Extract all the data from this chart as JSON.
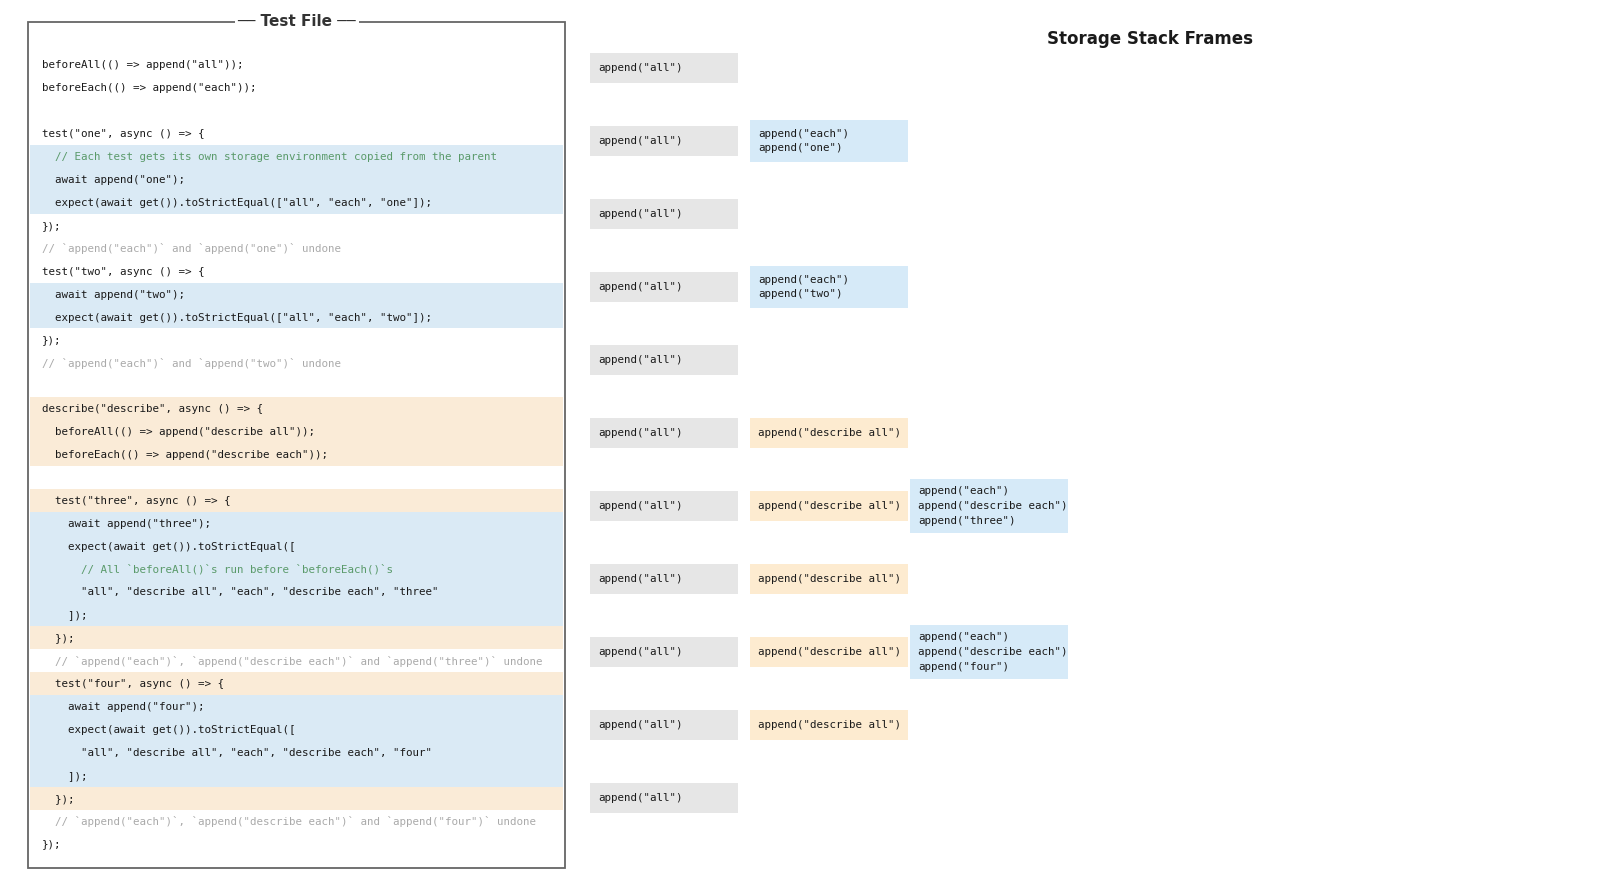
{
  "title": "Storage Stack Frames",
  "code_title": "Test File",
  "background": "#ffffff",
  "code_lines": [
    {
      "text": "beforeAll(() => append(\"all\"));",
      "style": "normal",
      "highlight": null
    },
    {
      "text": "beforeEach(() => append(\"each\"));",
      "style": "normal",
      "highlight": null
    },
    {
      "text": "",
      "style": "normal",
      "highlight": null
    },
    {
      "text": "test(\"one\", async () => {",
      "style": "normal",
      "highlight": null
    },
    {
      "text": "  // Each test gets its own storage environment copied from the parent",
      "style": "comment",
      "highlight": "blue"
    },
    {
      "text": "  await append(\"one\");",
      "style": "normal",
      "highlight": "blue"
    },
    {
      "text": "  expect(await get()).toStrictEqual([\"all\", \"each\", \"one\"]);",
      "style": "normal",
      "highlight": "blue"
    },
    {
      "text": "});",
      "style": "normal",
      "highlight": null
    },
    {
      "text": "// `append(\"each\")` and `append(\"one\")` undone",
      "style": "comment_gray",
      "highlight": null
    },
    {
      "text": "test(\"two\", async () => {",
      "style": "normal",
      "highlight": null
    },
    {
      "text": "  await append(\"two\");",
      "style": "normal",
      "highlight": "blue"
    },
    {
      "text": "  expect(await get()).toStrictEqual([\"all\", \"each\", \"two\"]);",
      "style": "normal",
      "highlight": "blue"
    },
    {
      "text": "});",
      "style": "normal",
      "highlight": null
    },
    {
      "text": "// `append(\"each\")` and `append(\"two\")` undone",
      "style": "comment_gray",
      "highlight": null
    },
    {
      "text": "",
      "style": "normal",
      "highlight": null
    },
    {
      "text": "describe(\"describe\", async () => {",
      "style": "normal",
      "highlight": "orange"
    },
    {
      "text": "  beforeAll(() => append(\"describe all\"));",
      "style": "normal",
      "highlight": "orange"
    },
    {
      "text": "  beforeEach(() => append(\"describe each\"));",
      "style": "normal",
      "highlight": "orange"
    },
    {
      "text": "",
      "style": "normal",
      "highlight": null
    },
    {
      "text": "  test(\"three\", async () => {",
      "style": "normal",
      "highlight": "orange"
    },
    {
      "text": "    await append(\"three\");",
      "style": "normal",
      "highlight": "blue"
    },
    {
      "text": "    expect(await get()).toStrictEqual([",
      "style": "normal",
      "highlight": "blue"
    },
    {
      "text": "      // All `beforeAll()`s run before `beforeEach()`s",
      "style": "comment",
      "highlight": "blue"
    },
    {
      "text": "      \"all\", \"describe all\", \"each\", \"describe each\", \"three\"",
      "style": "normal",
      "highlight": "blue"
    },
    {
      "text": "    ]);",
      "style": "normal",
      "highlight": "blue"
    },
    {
      "text": "  });",
      "style": "normal",
      "highlight": "orange"
    },
    {
      "text": "  // `append(\"each\")`, `append(\"describe each\")` and `append(\"three\")` undone",
      "style": "comment_gray",
      "highlight": null
    },
    {
      "text": "  test(\"four\", async () => {",
      "style": "normal",
      "highlight": "orange"
    },
    {
      "text": "    await append(\"four\");",
      "style": "normal",
      "highlight": "blue"
    },
    {
      "text": "    expect(await get()).toStrictEqual([",
      "style": "normal",
      "highlight": "blue"
    },
    {
      "text": "      \"all\", \"describe all\", \"each\", \"describe each\", \"four\"",
      "style": "normal",
      "highlight": "blue"
    },
    {
      "text": "    ]);",
      "style": "normal",
      "highlight": "blue"
    },
    {
      "text": "  });",
      "style": "normal",
      "highlight": "orange"
    },
    {
      "text": "  // `append(\"each\")`, `append(\"describe each\")` and `append(\"four\")` undone",
      "style": "comment_gray",
      "highlight": null
    },
    {
      "text": "});",
      "style": "normal",
      "highlight": null
    }
  ],
  "stack_rows": [
    [
      {
        "text": "append(\"all\")",
        "color": "#e6e6e6",
        "col": 0
      }
    ],
    [
      {
        "text": "append(\"all\")",
        "color": "#e6e6e6",
        "col": 0
      },
      {
        "text": "append(\"each\")\nappend(\"one\")",
        "color": "#d6eaf8",
        "col": 1
      }
    ],
    [
      {
        "text": "append(\"all\")",
        "color": "#e6e6e6",
        "col": 0
      }
    ],
    [
      {
        "text": "append(\"all\")",
        "color": "#e6e6e6",
        "col": 0
      },
      {
        "text": "append(\"each\")\nappend(\"two\")",
        "color": "#d6eaf8",
        "col": 1
      }
    ],
    [
      {
        "text": "append(\"all\")",
        "color": "#e6e6e6",
        "col": 0
      }
    ],
    [
      {
        "text": "append(\"all\")",
        "color": "#e6e6e6",
        "col": 0
      },
      {
        "text": "append(\"describe all\")",
        "color": "#fdebd0",
        "col": 1
      }
    ],
    [
      {
        "text": "append(\"all\")",
        "color": "#e6e6e6",
        "col": 0
      },
      {
        "text": "append(\"describe all\")",
        "color": "#fdebd0",
        "col": 1
      },
      {
        "text": "append(\"each\")\nappend(\"describe each\")\nappend(\"three\")",
        "color": "#d6eaf8",
        "col": 2
      }
    ],
    [
      {
        "text": "append(\"all\")",
        "color": "#e6e6e6",
        "col": 0
      },
      {
        "text": "append(\"describe all\")",
        "color": "#fdebd0",
        "col": 1
      }
    ],
    [
      {
        "text": "append(\"all\")",
        "color": "#e6e6e6",
        "col": 0
      },
      {
        "text": "append(\"describe all\")",
        "color": "#fdebd0",
        "col": 1
      },
      {
        "text": "append(\"each\")\nappend(\"describe each\")\nappend(\"four\")",
        "color": "#d6eaf8",
        "col": 2
      }
    ],
    [
      {
        "text": "append(\"all\")",
        "color": "#e6e6e6",
        "col": 0
      },
      {
        "text": "append(\"describe all\")",
        "color": "#fdebd0",
        "col": 1
      }
    ],
    [
      {
        "text": "append(\"all\")",
        "color": "#e6e6e6",
        "col": 0
      }
    ]
  ],
  "highlight_colors": {
    "blue": "#daeaf5",
    "orange": "#faebd7"
  },
  "comment_color": "#5a9a6a",
  "comment_gray_color": "#aaaaaa",
  "normal_color": "#1a1a1a",
  "code_border_color": "#666666",
  "title_color": "#1a1a1a"
}
